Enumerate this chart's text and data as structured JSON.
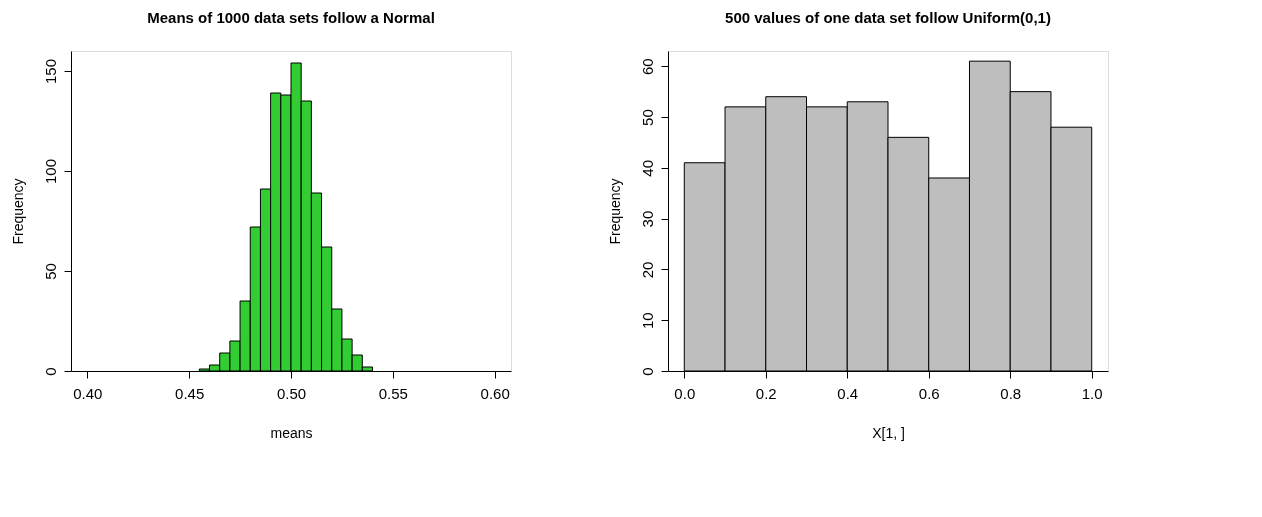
{
  "chart_data": [
    {
      "type": "histogram",
      "title": "Means of 1000 data sets follow a Normal",
      "xlabel": "means",
      "ylabel": "Frequency",
      "color": "#32cd32",
      "bins": [
        0.455,
        0.46,
        0.465,
        0.47,
        0.475,
        0.48,
        0.485,
        0.49,
        0.495,
        0.5,
        0.505,
        0.51,
        0.515,
        0.52,
        0.525,
        0.53,
        0.535,
        0.54
      ],
      "values": [
        1,
        3,
        9,
        15,
        35,
        72,
        91,
        139,
        138,
        154,
        135,
        89,
        62,
        31,
        16,
        8,
        2
      ],
      "xlim": [
        0.392,
        0.608
      ],
      "xticks": [
        {
          "value": 0.4,
          "label": "0.40"
        },
        0.45,
        {
          "value": 0.5,
          "label": "0.50"
        },
        0.55,
        {
          "value": 0.6,
          "label": "0.60"
        }
      ],
      "ylim": [
        0,
        160
      ],
      "yticks": [
        0,
        50,
        100,
        150
      ],
      "grid": false
    },
    {
      "type": "histogram",
      "title": "500 values of one data set follow Uniform(0,1)",
      "xlabel": "X[1, ]",
      "ylabel": "Frequency",
      "color": "#bebebe",
      "bins": [
        0,
        0.1,
        0.2,
        0.3,
        0.4,
        0.5,
        0.6,
        0.7,
        0.8,
        0.9,
        1
      ],
      "values": [
        41,
        52,
        54,
        52,
        53,
        46,
        38,
        61,
        55,
        48
      ],
      "xlim": [
        -0.04,
        1.04
      ],
      "xticks": [
        {
          "value": 0,
          "label": "0.0"
        },
        0.2,
        0.4,
        0.6,
        0.8,
        {
          "value": 1,
          "label": "1.0"
        }
      ],
      "ylim": [
        0,
        63
      ],
      "yticks": [
        0,
        10,
        20,
        30,
        40,
        50,
        60
      ],
      "grid": false
    }
  ]
}
